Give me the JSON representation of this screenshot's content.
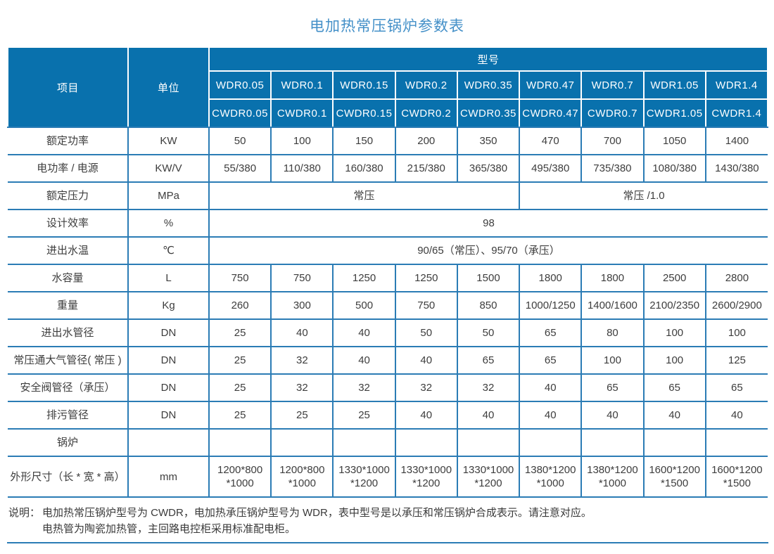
{
  "title": "电加热常压锅炉参数表",
  "table": {
    "corner": {
      "item": "项目",
      "unit": "单位"
    },
    "model_header": "型号",
    "wdr_models": [
      "WDR0.05",
      "WDR0.1",
      "WDR0.15",
      "WDR0.2",
      "WDR0.35",
      "WDR0.47",
      "WDR0.7",
      "WDR1.05",
      "WDR1.4"
    ],
    "cwdr_models": [
      "CWDR0.05",
      "CWDR0.1",
      "CWDR0.15",
      "CWDR0.2",
      "CWDR0.35",
      "CWDR0.47",
      "CWDR0.7",
      "CWDR1.05",
      "CWDR1.4"
    ],
    "rows": [
      {
        "label": "额定功率",
        "unit": "KW",
        "values": [
          "50",
          "100",
          "150",
          "200",
          "350",
          "470",
          "700",
          "1050",
          "1400"
        ]
      },
      {
        "label": "电功率 / 电源",
        "unit": "KW/V",
        "values": [
          "55/380",
          "110/380",
          "160/380",
          "215/380",
          "365/380",
          "495/380",
          "735/380",
          "1080/380",
          "1430/380"
        ]
      },
      {
        "label": "额定压力",
        "unit": "MPa",
        "merged": [
          {
            "text": "常压",
            "span": 5
          },
          {
            "text": "常压 /1.0",
            "span": 4
          }
        ]
      },
      {
        "label": "设计效率",
        "unit": "%",
        "merged": [
          {
            "text": "98",
            "span": 9
          }
        ]
      },
      {
        "label": "进出水温",
        "unit": "℃",
        "merged": [
          {
            "text": "90/65（常压）、95/70（承压）",
            "span": 9
          }
        ]
      },
      {
        "label": "水容量",
        "unit": "L",
        "values": [
          "750",
          "750",
          "1250",
          "1250",
          "1500",
          "1800",
          "1800",
          "2500",
          "2800"
        ]
      },
      {
        "label": "重量",
        "unit": "Kg",
        "values": [
          "260",
          "300",
          "500",
          "750",
          "850",
          "1000/1250",
          "1400/1600",
          "2100/2350",
          "2600/2900"
        ]
      },
      {
        "label": "进出水管径",
        "unit": "DN",
        "values": [
          "25",
          "40",
          "40",
          "50",
          "50",
          "65",
          "80",
          "100",
          "100"
        ]
      },
      {
        "label": "常压通大气管径( 常压 )",
        "unit": "DN",
        "values": [
          "25",
          "32",
          "40",
          "40",
          "65",
          "65",
          "100",
          "100",
          "125"
        ]
      },
      {
        "label": "安全阀管径（承压）",
        "unit": "DN",
        "values": [
          "25",
          "32",
          "32",
          "32",
          "32",
          "40",
          "65",
          "65",
          "65"
        ]
      },
      {
        "label": "排污管径",
        "unit": "DN",
        "values": [
          "25",
          "25",
          "25",
          "40",
          "40",
          "40",
          "40",
          "40",
          "40"
        ]
      },
      {
        "label": "锅炉",
        "unit": "",
        "values": [
          "",
          "",
          "",
          "",
          "",
          "",
          "",
          "",
          ""
        ]
      },
      {
        "label": "外形尺寸（长 * 宽 * 高）",
        "unit": "mm",
        "tall": true,
        "values": [
          "1200*800\n*1000",
          "1200*800\n*1000",
          "1330*1000\n*1200",
          "1330*1000\n*1200",
          "1330*1000\n*1200",
          "1380*1200\n*1000",
          "1380*1200\n*1000",
          "1600*1200\n*1500",
          "1600*1200\n*1500"
        ]
      }
    ]
  },
  "notes": {
    "label": "说明：",
    "line1": "电加热常压锅炉型号为 CWDR，电加热承压锅炉型号为 WDR，表中型号是以承压和常压锅炉合成表示。请注意对应。",
    "line2": "电热管为陶瓷加热管，主回路电控柜采用标准配电柜。"
  },
  "colors": {
    "header_bg": "#0971ad",
    "border_blue": "#2b7cb5",
    "title_blue": "#4490c8",
    "body_text": "#3d3d3d"
  }
}
